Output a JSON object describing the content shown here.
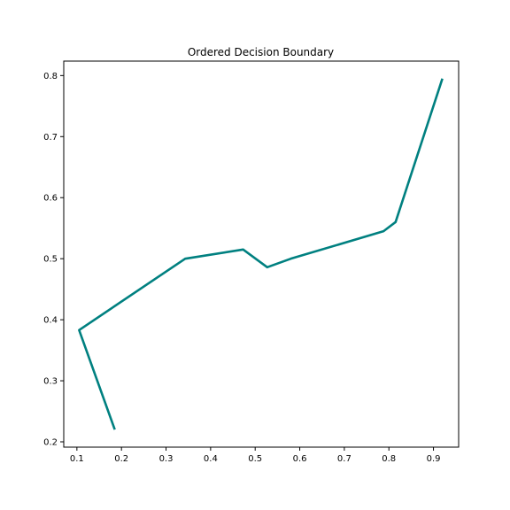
{
  "chart_data": {
    "type": "line",
    "title": "Ordered Decision Boundary",
    "xlabel": "",
    "ylabel": "",
    "xlim": [
      0.0705,
      0.9565
    ],
    "ylim": [
      0.1913,
      0.8237
    ],
    "xticks": [
      0.1,
      0.2,
      0.3,
      0.4,
      0.5,
      0.6,
      0.7,
      0.8,
      0.9
    ],
    "xtick_labels": [
      "0.1",
      "0.2",
      "0.3",
      "0.4",
      "0.5",
      "0.6",
      "0.7",
      "0.8",
      "0.9"
    ],
    "yticks": [
      0.2,
      0.3,
      0.4,
      0.5,
      0.6,
      0.7,
      0.8
    ],
    "ytick_labels": [
      "0.2",
      "0.3",
      "0.4",
      "0.5",
      "0.6",
      "0.7",
      "0.8"
    ],
    "grid": false,
    "series": [
      {
        "color": "#008080",
        "x": [
          0.185,
          0.105,
          0.343,
          0.473,
          0.527,
          0.58,
          0.788,
          0.815,
          0.92
        ],
        "y": [
          0.22,
          0.383,
          0.5,
          0.515,
          0.486,
          0.5,
          0.545,
          0.56,
          0.795
        ]
      }
    ]
  }
}
